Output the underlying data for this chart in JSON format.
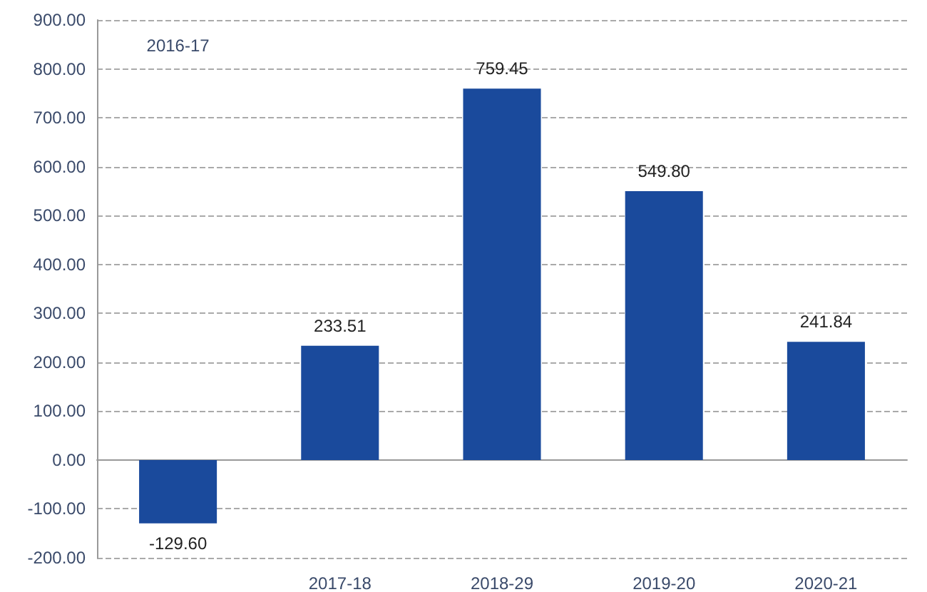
{
  "chart_data": {
    "type": "bar",
    "categories": [
      "2016-17",
      "2017-18",
      "2018-29",
      "2019-20",
      "2020-21"
    ],
    "values": [
      -129.6,
      233.51,
      759.45,
      549.8,
      241.84
    ],
    "value_labels": [
      "-129.60",
      "233.51",
      "759.45",
      "549.80",
      "241.84"
    ],
    "color": "#1a4a9c",
    "ylim": [
      -200,
      900
    ],
    "yticks": [
      {
        "value": -200,
        "label": "-200.00"
      },
      {
        "value": -100,
        "label": "-100.00"
      },
      {
        "value": 0,
        "label": "0.00"
      },
      {
        "value": 100,
        "label": "100.00"
      },
      {
        "value": 200,
        "label": "200.00"
      },
      {
        "value": 300,
        "label": "300.00"
      },
      {
        "value": 400,
        "label": "400.00"
      },
      {
        "value": 500,
        "label": "500.00"
      },
      {
        "value": 600,
        "label": "600.00"
      },
      {
        "value": 700,
        "label": "700.00"
      },
      {
        "value": 800,
        "label": "800.00"
      },
      {
        "value": 900,
        "label": "900.00"
      }
    ],
    "grid": "y"
  }
}
